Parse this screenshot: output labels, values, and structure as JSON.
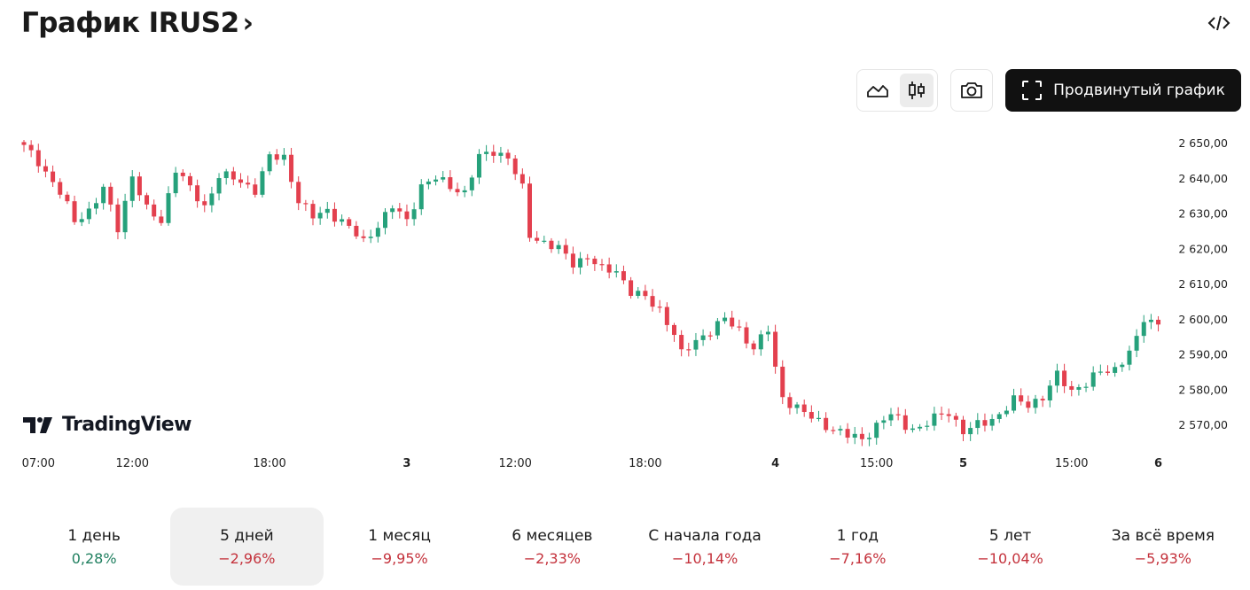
{
  "header": {
    "title": "График IRUS2",
    "chevron": "›",
    "embed_icon": "code-icon"
  },
  "toolbar": {
    "line_chart_icon": "area-chart-icon",
    "candles_icon": "candlestick-icon",
    "candles_active": true,
    "snapshot_icon": "camera-icon",
    "advanced_label": "Продвинутый график",
    "advanced_icon": "fullscreen-icon"
  },
  "branding": {
    "logo_text": "TradingView",
    "logo_icon": "tradingview-logo-icon"
  },
  "colors": {
    "up": "#26a17b",
    "down": "#e3404e",
    "text": "#1a1a1a",
    "positive_text": "#1f7f5f",
    "negative_text": "#c4323c"
  },
  "chart_data": {
    "type": "candlestick",
    "y_axis": {
      "min": 2562,
      "max": 2652,
      "ticks": [
        2650,
        2640,
        2630,
        2620,
        2610,
        2600,
        2590,
        2580,
        2570
      ],
      "tick_labels": [
        "2 650,00",
        "2 640,00",
        "2 630,00",
        "2 620,00",
        "2 610,00",
        "2 600,00",
        "2 590,00",
        "2 580,00",
        "2 570,00"
      ],
      "position": "right"
    },
    "x_axis": {
      "labels": [
        {
          "text": "07:00",
          "i": 2,
          "bold": false
        },
        {
          "text": "12:00",
          "i": 15,
          "bold": false
        },
        {
          "text": "18:00",
          "i": 34,
          "bold": false
        },
        {
          "text": "3",
          "i": 53,
          "bold": true
        },
        {
          "text": "12:00",
          "i": 68,
          "bold": false
        },
        {
          "text": "18:00",
          "i": 86,
          "bold": false
        },
        {
          "text": "4",
          "i": 104,
          "bold": true
        },
        {
          "text": "15:00",
          "i": 118,
          "bold": false
        },
        {
          "text": "5",
          "i": 130,
          "bold": true
        },
        {
          "text": "15:00",
          "i": 145,
          "bold": false
        },
        {
          "text": "6",
          "i": 157,
          "bold": true
        }
      ]
    },
    "grid": false,
    "anchors": [
      [
        0,
        2649
      ],
      [
        2,
        2645
      ],
      [
        5,
        2636
      ],
      [
        7,
        2628
      ],
      [
        9,
        2631
      ],
      [
        11,
        2637
      ],
      [
        13,
        2626
      ],
      [
        15,
        2641
      ],
      [
        17,
        2631
      ],
      [
        19,
        2628
      ],
      [
        21,
        2643
      ],
      [
        23,
        2637
      ],
      [
        25,
        2632
      ],
      [
        27,
        2641
      ],
      [
        29,
        2640
      ],
      [
        32,
        2637
      ],
      [
        34,
        2646
      ],
      [
        36,
        2646
      ],
      [
        38,
        2634
      ],
      [
        40,
        2629
      ],
      [
        42,
        2631
      ],
      [
        44,
        2628
      ],
      [
        46,
        2624
      ],
      [
        47,
        2622
      ],
      [
        49,
        2627
      ],
      [
        51,
        2632
      ],
      [
        53,
        2628
      ],
      [
        55,
        2638
      ],
      [
        57,
        2640
      ],
      [
        59,
        2638
      ],
      [
        61,
        2636
      ],
      [
        63,
        2646
      ],
      [
        65,
        2648
      ],
      [
        67,
        2646
      ],
      [
        69,
        2637
      ],
      [
        70,
        2624
      ],
      [
        72,
        2622
      ],
      [
        74,
        2620
      ],
      [
        76,
        2616
      ],
      [
        78,
        2618
      ],
      [
        80,
        2614
      ],
      [
        82,
        2614
      ],
      [
        84,
        2608
      ],
      [
        86,
        2606
      ],
      [
        88,
        2603
      ],
      [
        90,
        2596
      ],
      [
        91,
        2590
      ],
      [
        93,
        2594
      ],
      [
        95,
        2597
      ],
      [
        97,
        2600
      ],
      [
        99,
        2597
      ],
      [
        101,
        2592
      ],
      [
        103,
        2597
      ],
      [
        104,
        2586
      ],
      [
        105,
        2578
      ],
      [
        107,
        2575
      ],
      [
        109,
        2572
      ],
      [
        111,
        2570
      ],
      [
        114,
        2567
      ],
      [
        116,
        2566
      ],
      [
        118,
        2570
      ],
      [
        120,
        2573
      ],
      [
        122,
        2570
      ],
      [
        124,
        2569
      ],
      [
        126,
        2572
      ],
      [
        128,
        2574
      ],
      [
        130,
        2568
      ],
      [
        132,
        2570
      ],
      [
        135,
        2573
      ],
      [
        137,
        2577
      ],
      [
        139,
        2576
      ],
      [
        141,
        2578
      ],
      [
        143,
        2584
      ],
      [
        145,
        2580
      ],
      [
        147,
        2582
      ],
      [
        149,
        2585
      ],
      [
        151,
        2586
      ],
      [
        153,
        2591
      ],
      [
        154,
        2594
      ],
      [
        155,
        2600
      ],
      [
        157,
        2599
      ]
    ],
    "candle_count": 158
  },
  "periods": [
    {
      "label": "1 день",
      "change": "0,28%",
      "dir": "pos",
      "active": false
    },
    {
      "label": "5 дней",
      "change": "−2,96%",
      "dir": "neg",
      "active": true
    },
    {
      "label": "1 месяц",
      "change": "−9,95%",
      "dir": "neg",
      "active": false
    },
    {
      "label": "6 месяцев",
      "change": "−2,33%",
      "dir": "neg",
      "active": false
    },
    {
      "label": "С начала года",
      "change": "−10,14%",
      "dir": "neg",
      "active": false
    },
    {
      "label": "1 год",
      "change": "−7,16%",
      "dir": "neg",
      "active": false
    },
    {
      "label": "5 лет",
      "change": "−10,04%",
      "dir": "neg",
      "active": false
    },
    {
      "label": "За всё время",
      "change": "−5,93%",
      "dir": "neg",
      "active": false
    }
  ]
}
